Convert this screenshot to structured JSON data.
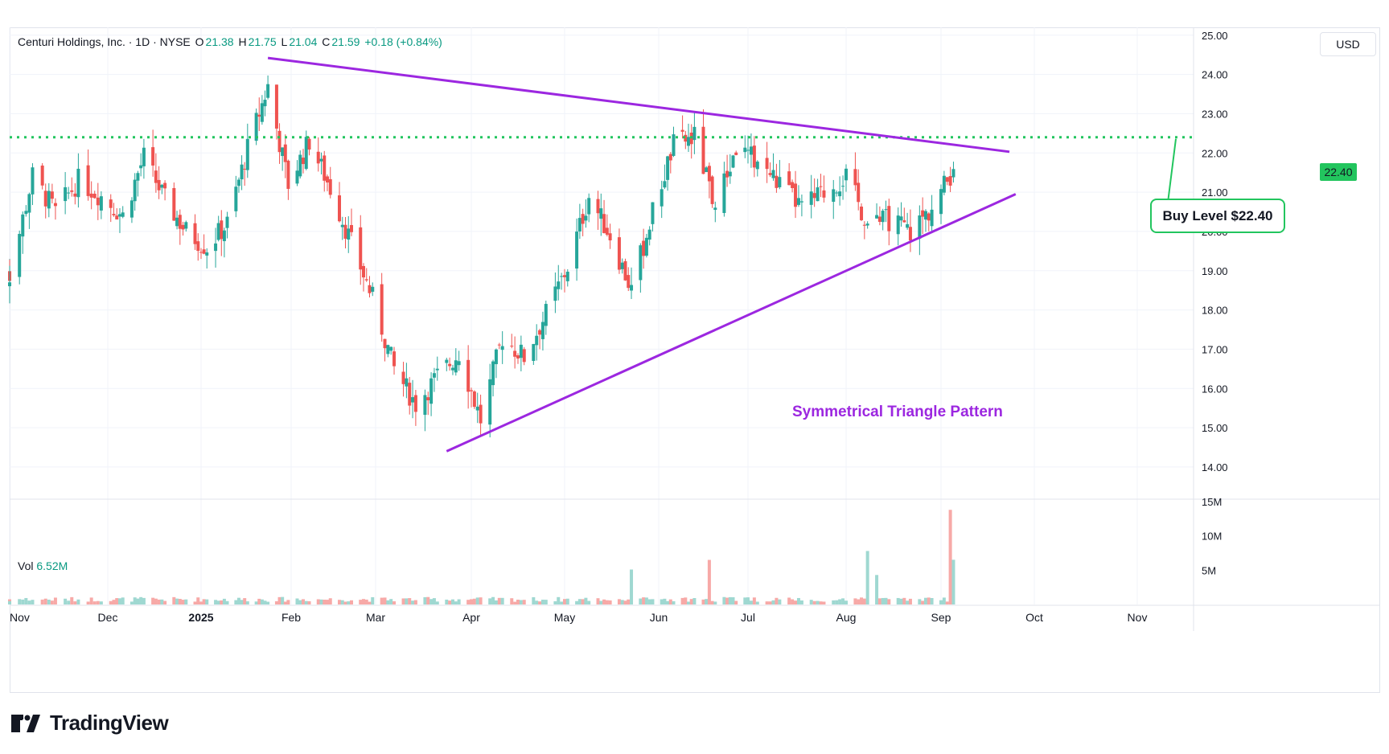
{
  "header": {
    "symbol": "Centuri Holdings, Inc. · 1D · NYSE",
    "open_label": "O",
    "open": "21.38",
    "high_label": "H",
    "high": "21.75",
    "low_label": "L",
    "low": "21.04",
    "close_label": "C",
    "close": "21.59",
    "change": "+0.18 (+0.84%)"
  },
  "currency": "USD",
  "volume_legend": {
    "label": "Vol",
    "value": "6.52M"
  },
  "annotations": {
    "buy_level": "Buy Level $22.40",
    "pattern": "Symmetrical Triangle Pattern",
    "price_tag": "22.40"
  },
  "brand": "TradingView",
  "colors": {
    "up": "#26a69a",
    "down": "#ef5350",
    "trendline": "#9c27e0",
    "buy_line": "#22c55e",
    "grid": "#f0f3fa"
  },
  "chart_data": {
    "type": "candlestick",
    "title": "Centuri Holdings, Inc. · 1D · NYSE",
    "price_axis": {
      "ticks": [
        "14.00",
        "15.00",
        "16.00",
        "17.00",
        "18.00",
        "19.00",
        "20.00",
        "21.00",
        "22.00",
        "23.00",
        "24.00",
        "25.00"
      ],
      "ylim": [
        13.2,
        25.2
      ],
      "scale": "linear"
    },
    "volume_axis": {
      "ticks": [
        "5M",
        "10M",
        "15M"
      ],
      "ylim": [
        0,
        15000000
      ]
    },
    "time_axis": {
      "ticks": [
        "Nov",
        "Dec",
        "2025",
        "Feb",
        "Mar",
        "Apr",
        "May",
        "Jun",
        "Jul",
        "Aug",
        "Sep",
        "Oct",
        "Nov"
      ]
    },
    "grid": true,
    "buy_level": 22.4,
    "trendlines": [
      {
        "name": "upper",
        "points": [
          [
            "2025-01-24",
            24.42
          ],
          [
            "2025-09-23",
            22.03
          ]
        ]
      },
      {
        "name": "lower",
        "points": [
          [
            "2025-03-24",
            14.4
          ],
          [
            "2025-09-25",
            20.95
          ]
        ]
      }
    ],
    "close_approx": [
      [
        "2024-11-01",
        18.9
      ],
      [
        "2024-11-08",
        21.4
      ],
      [
        "2024-11-15",
        20.5
      ],
      [
        "2024-11-22",
        21.3
      ],
      [
        "2024-11-29",
        20.9
      ],
      [
        "2024-12-06",
        20.4
      ],
      [
        "2024-12-13",
        21.9
      ],
      [
        "2024-12-20",
        20.8
      ],
      [
        "2024-12-27",
        20.0
      ],
      [
        "2025-01-03",
        19.6
      ],
      [
        "2025-01-10",
        20.2
      ],
      [
        "2025-01-17",
        22.1
      ],
      [
        "2025-01-24",
        23.7
      ],
      [
        "2025-01-31",
        21.2
      ],
      [
        "2025-02-07",
        22.3
      ],
      [
        "2025-02-14",
        21.1
      ],
      [
        "2025-02-21",
        19.7
      ],
      [
        "2025-02-28",
        18.3
      ],
      [
        "2025-03-07",
        16.5
      ],
      [
        "2025-03-14",
        15.6
      ],
      [
        "2025-03-21",
        16.3
      ],
      [
        "2025-03-28",
        16.9
      ],
      [
        "2025-04-04",
        15.2
      ],
      [
        "2025-04-11",
        17.3
      ],
      [
        "2025-04-18",
        16.8
      ],
      [
        "2025-04-25",
        17.9
      ],
      [
        "2025-05-02",
        19.1
      ],
      [
        "2025-05-09",
        20.9
      ],
      [
        "2025-05-16",
        19.9
      ],
      [
        "2025-05-23",
        18.5
      ],
      [
        "2025-05-30",
        20.5
      ],
      [
        "2025-06-06",
        22.2
      ],
      [
        "2025-06-13",
        22.4
      ],
      [
        "2025-06-20",
        20.6
      ],
      [
        "2025-06-27",
        22.1
      ],
      [
        "2025-07-04",
        21.8
      ],
      [
        "2025-07-11",
        21.2
      ],
      [
        "2025-07-18",
        20.6
      ],
      [
        "2025-07-25",
        21.0
      ],
      [
        "2025-08-01",
        21.4
      ],
      [
        "2025-08-08",
        20.2
      ],
      [
        "2025-08-15",
        20.3
      ],
      [
        "2025-08-22",
        20.0
      ],
      [
        "2025-08-29",
        20.6
      ],
      [
        "2025-09-05",
        21.59
      ]
    ],
    "volume_approx": [
      [
        "2025-05-23",
        5100000
      ],
      [
        "2025-06-18",
        6500000
      ],
      [
        "2025-08-08",
        7800000
      ],
      [
        "2025-08-11",
        4300000
      ],
      [
        "2025-09-04",
        13800000
      ],
      [
        "2025-09-05",
        6520000
      ]
    ]
  }
}
